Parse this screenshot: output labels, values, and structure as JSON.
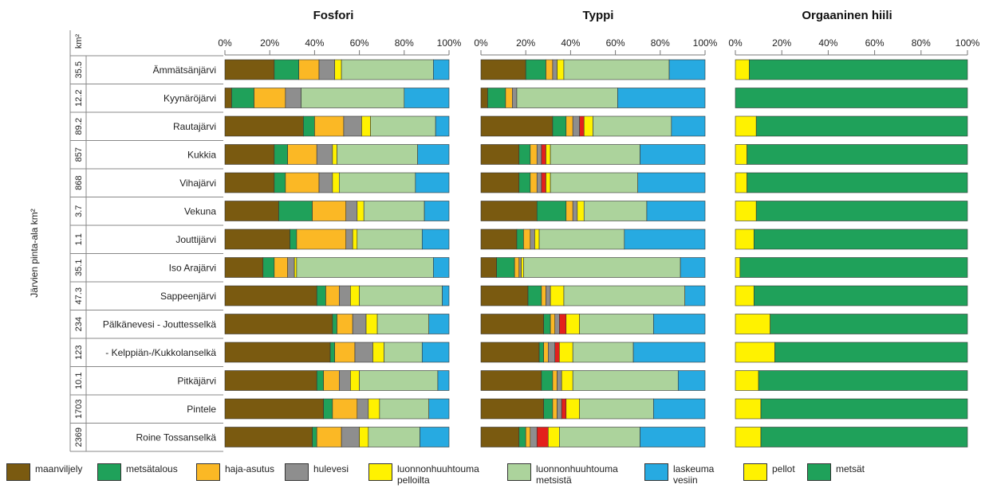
{
  "chart_data": {
    "type": "bar",
    "orientation": "horizontal",
    "stacked": true,
    "normalized": true,
    "y_axis_label": "Järvien pinta-ala km²",
    "area_unit_header": "km²",
    "lakes": [
      {
        "name": "Ämmätsänjärvi",
        "area": "35.5"
      },
      {
        "name": "Kyynäröjärvi",
        "area": "12.2"
      },
      {
        "name": "Rautajärvi",
        "area": "89.2"
      },
      {
        "name": "Kukkia",
        "area": "857"
      },
      {
        "name": "Vihajärvi",
        "area": "868"
      },
      {
        "name": "Vekuna",
        "area": "3.7"
      },
      {
        "name": "Jouttijärvi",
        "area": "1.1"
      },
      {
        "name": "Iso Arajärvi",
        "area": "35.1"
      },
      {
        "name": "Sappeenjärvi",
        "area": "47.3"
      },
      {
        "name": "Pälkänevesi - Jouttesselkä",
        "area": "234"
      },
      {
        "name": "- Kelppiän-/Kukkolanselkä",
        "area": "123"
      },
      {
        "name": "Pitkäjärvi",
        "area": "10.1"
      },
      {
        "name": "Pintele",
        "area": "1703"
      },
      {
        "name": "Roine Tossanselkä",
        "area": "2369"
      }
    ],
    "tick_labels": [
      "0%",
      "20%",
      "40%",
      "60%",
      "80%",
      "100%"
    ],
    "panels": [
      {
        "title": "Fosfori",
        "series": [
          {
            "name": "maanviljely",
            "values": [
              22,
              3,
              35,
              22,
              22,
              24,
              29,
              17,
              41,
              48,
              47,
              41,
              44,
              39
            ]
          },
          {
            "name": "metsätalous",
            "values": [
              11,
              10,
              5,
              6,
              5,
              15,
              3,
              5,
              4,
              2,
              2,
              3,
              4,
              2
            ]
          },
          {
            "name": "haja-asutus",
            "values": [
              9,
              14,
              13,
              13,
              15,
              15,
              22,
              6,
              6,
              7,
              9,
              7,
              11,
              11
            ]
          },
          {
            "name": "hulevesi",
            "values": [
              7,
              7,
              8,
              7,
              6,
              5,
              3,
              3,
              5,
              6,
              8,
              5,
              5,
              8
            ]
          },
          {
            "name": "luonnonhuuhtouma pelloilta",
            "values": [
              3,
              0,
              4,
              2,
              3,
              3,
              2,
              1,
              4,
              5,
              5,
              4,
              5,
              4
            ]
          },
          {
            "name": "luonnonhuuhtouma metsistä",
            "values": [
              41,
              46,
              29,
              36,
              34,
              27,
              29,
              61,
              37,
              23,
              17,
              35,
              22,
              23
            ]
          },
          {
            "name": "laskeuma vesiin",
            "values": [
              7,
              20,
              6,
              14,
              15,
              11,
              12,
              7,
              3,
              9,
              12,
              5,
              9,
              13
            ]
          }
        ]
      },
      {
        "title": "Typpi",
        "series": [
          {
            "name": "maanviljely",
            "values": [
              20,
              3,
              32,
              17,
              17,
              25,
              16,
              7,
              21,
              28,
              26,
              27,
              28,
              17
            ]
          },
          {
            "name": "metsätalous",
            "values": [
              9,
              8,
              6,
              5,
              5,
              13,
              3,
              8,
              6,
              3,
              2,
              5,
              4,
              3
            ]
          },
          {
            "name": "haja-asutus",
            "values": [
              3,
              3,
              3,
              3,
              3,
              3,
              3,
              2,
              2,
              2,
              2,
              2,
              2,
              2
            ]
          },
          {
            "name": "hulevesi",
            "values": [
              2,
              2,
              3,
              2,
              2,
              2,
              2,
              1,
              2,
              2,
              3,
              2,
              2,
              3
            ]
          },
          {
            "name": "hulevesi-red",
            "values": [
              0,
              0,
              2,
              2,
              2,
              0,
              0,
              0,
              0,
              3,
              2,
              0,
              2,
              5
            ]
          },
          {
            "name": "luonnonhuuhtouma pelloilta",
            "values": [
              3,
              0,
              4,
              2,
              2,
              3,
              2,
              1,
              6,
              6,
              6,
              5,
              6,
              5
            ]
          },
          {
            "name": "luonnonhuuhtouma metsistä",
            "values": [
              47,
              45,
              35,
              40,
              39,
              28,
              38,
              70,
              54,
              33,
              27,
              47,
              33,
              36
            ]
          },
          {
            "name": "laskeuma vesiin",
            "values": [
              16,
              39,
              15,
              29,
              30,
              26,
              36,
              11,
              9,
              23,
              32,
              12,
              23,
              29
            ]
          }
        ]
      },
      {
        "title": "Orgaaninen hiili",
        "series": [
          {
            "name": "pellot",
            "values": [
              6,
              0,
              9,
              5,
              5,
              9,
              8,
              2,
              8,
              15,
              17,
              10,
              11,
              11
            ]
          },
          {
            "name": "metsät",
            "values": [
              94,
              100,
              91,
              95,
              95,
              91,
              92,
              98,
              92,
              85,
              83,
              90,
              89,
              89
            ]
          }
        ]
      }
    ],
    "colors": {
      "maanviljely": "#7a5a10",
      "metsätalous": "#1fa15a",
      "haja-asutus": "#fbb825",
      "hulevesi": "#8e8e8e",
      "hulevesi-red": "#e3201c",
      "luonnonhuuhtouma pelloilta": "#fff200",
      "luonnonhuuhtouma metsistä": "#acd39c",
      "laskeuma vesiin": "#27aae1",
      "pellot": "#fff200",
      "metsät": "#1fa15a"
    },
    "legend": [
      {
        "key": "maanviljely",
        "label": "maanviljely"
      },
      {
        "key": "metsätalous",
        "label": "metsätalous"
      },
      {
        "key": "haja-asutus",
        "label": "haja-asutus"
      },
      {
        "key": "hulevesi",
        "label": "hulevesi"
      },
      {
        "key": "luonnonhuuhtouma pelloilta",
        "label": "luonnonhuuhtouma\npelloilta"
      },
      {
        "key": "luonnonhuuhtouma metsistä",
        "label": "luonnonhuuhtouma\nmetsistä"
      },
      {
        "key": "laskeuma vesiin",
        "label": "laskeuma\nvesiin"
      },
      {
        "key": "pellot",
        "label": "pellot"
      },
      {
        "key": "metsät",
        "label": "metsät"
      }
    ]
  }
}
